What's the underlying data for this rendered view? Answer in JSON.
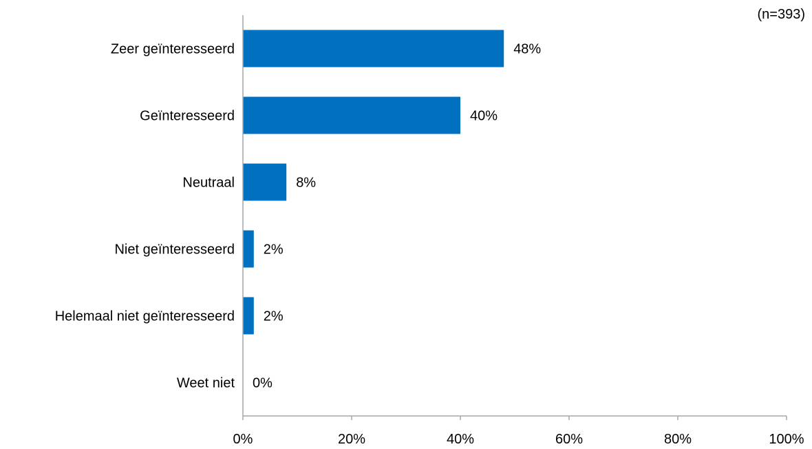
{
  "chart_data": {
    "type": "bar",
    "orientation": "horizontal",
    "note": "(n=393)",
    "categories": [
      "Zeer geïnteresseerd",
      "Geïnteresseerd",
      "Neutraal",
      "Niet geïnteresseerd",
      "Helemaal niet geïnteresseerd",
      "Weet niet"
    ],
    "values": [
      48,
      40,
      8,
      2,
      2,
      0
    ],
    "value_labels": [
      "48%",
      "40%",
      "8%",
      "2%",
      "2%",
      "0%"
    ],
    "xlim": [
      0,
      100
    ],
    "x_ticks": [
      0,
      20,
      40,
      60,
      80,
      100
    ],
    "x_tick_labels": [
      "0%",
      "20%",
      "40%",
      "60%",
      "80%",
      "100%"
    ],
    "bar_color": "#0070C0",
    "axis_color": "#A6A6A6",
    "grid": false,
    "legend": "none"
  }
}
